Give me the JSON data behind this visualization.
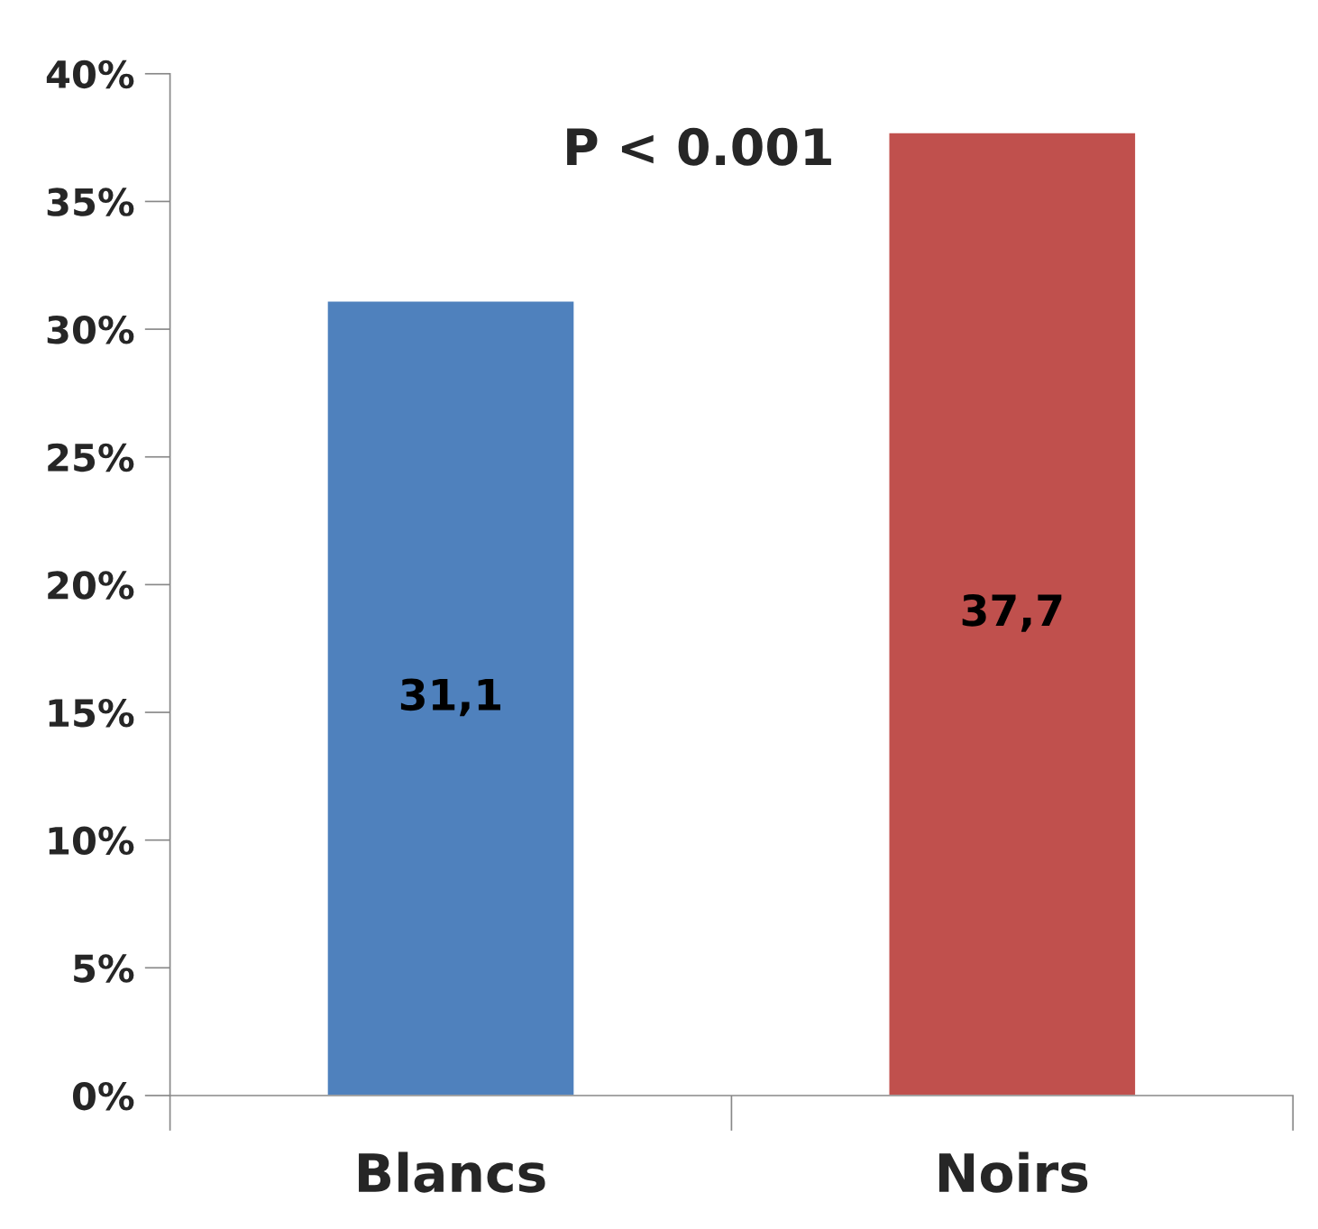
{
  "chart_data": {
    "type": "bar",
    "categories": [
      "Blancs",
      "Noirs"
    ],
    "values": [
      31.1,
      37.7
    ],
    "colors": [
      "#4f81bd",
      "#c0504d"
    ],
    "value_labels": [
      "31,1",
      "37,7"
    ],
    "ylim": [
      0,
      40
    ],
    "yticks": [
      {
        "value": 0,
        "label": "0%"
      },
      {
        "value": 5,
        "label": "5%"
      },
      {
        "value": 10,
        "label": "10%"
      },
      {
        "value": 15,
        "label": "15%"
      },
      {
        "value": 20,
        "label": "20%"
      },
      {
        "value": 25,
        "label": "25%"
      },
      {
        "value": 30,
        "label": "30%"
      },
      {
        "value": 35,
        "label": "35%"
      },
      {
        "value": 40,
        "label": "40%"
      }
    ],
    "annotations": [
      "P < 0.001"
    ],
    "grid": false,
    "legend": false
  }
}
